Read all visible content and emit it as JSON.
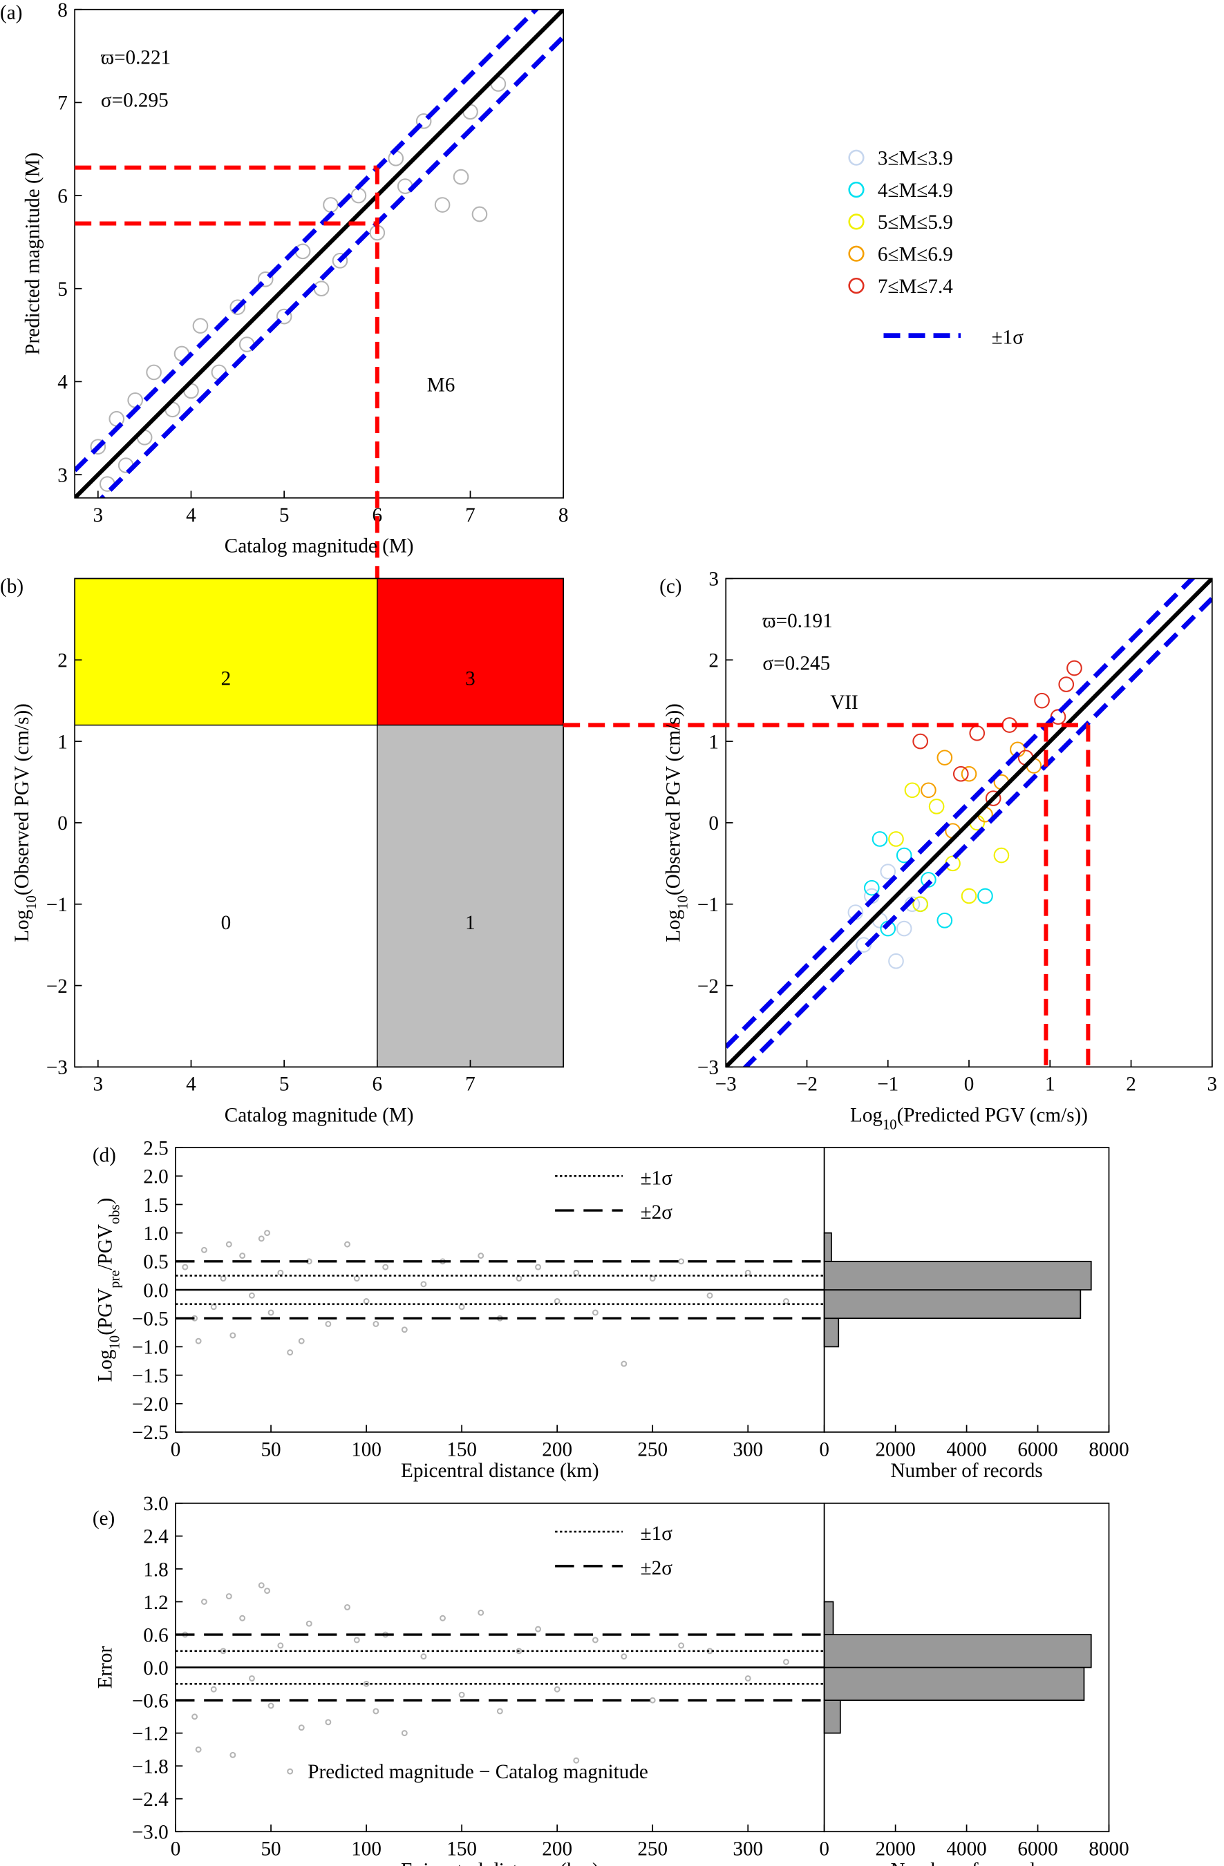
{
  "chart_data": [
    {
      "type": "scatter",
      "panel": "(a)",
      "x_label": [
        "Catalog magnitude (M)"
      ],
      "y_label": [
        "Predicted magnitude (M)"
      ],
      "xlim": [
        2.75,
        8
      ],
      "ylim": [
        2.75,
        8
      ],
      "xticks": [
        3,
        4,
        5,
        6,
        7,
        8
      ],
      "yticks": [
        3,
        4,
        5,
        6,
        7,
        8
      ],
      "color": "#b4b4b4",
      "x": [
        3.0,
        3.1,
        3.2,
        3.3,
        3.4,
        3.5,
        3.6,
        3.8,
        3.9,
        4.0,
        4.1,
        4.3,
        4.5,
        4.6,
        4.8,
        5.0,
        5.2,
        5.4,
        5.5,
        5.6,
        5.8,
        6.0,
        6.2,
        6.3,
        6.5,
        6.7,
        6.9,
        7.0,
        7.1,
        7.3
      ],
      "y": [
        3.3,
        2.9,
        3.6,
        3.1,
        3.8,
        3.4,
        4.1,
        3.7,
        4.3,
        3.9,
        4.6,
        4.1,
        4.8,
        4.4,
        5.1,
        4.7,
        5.4,
        5.0,
        5.9,
        5.3,
        6.0,
        5.6,
        6.4,
        6.1,
        6.8,
        5.9,
        6.2,
        6.9,
        5.8,
        7.2
      ],
      "stats": [
        {
          "symbol": "ϖ=",
          "value": 0.221
        },
        {
          "symbol": "σ=",
          "value": 0.295
        }
      ],
      "band_color": "#0000ee",
      "thresholds": {
        "x": [
          6
        ],
        "y": [
          5.7,
          6.3
        ],
        "color": "#ff0000",
        "label": "M6"
      }
    },
    {
      "type": "quadrant",
      "panel": "(b)",
      "x_label": [
        "Catalog magnitude (M)"
      ],
      "y_label": [
        "Log",
        "10",
        "(Observed PGV (cm/s))"
      ],
      "xlim": [
        2.75,
        8
      ],
      "ylim": [
        -3,
        3
      ],
      "xticks": [
        3,
        4,
        5,
        6,
        7
      ],
      "yticks": [
        {
          "value": -3,
          "label": "−3"
        },
        {
          "value": -2,
          "label": "−2"
        },
        {
          "value": -1,
          "label": "−1"
        },
        0,
        1,
        2
      ],
      "x_split": 6,
      "y_split": 1.2,
      "cells": [
        {
          "label": "0",
          "color": "#ffffff"
        },
        {
          "label": "1",
          "color": "#bebebe"
        },
        {
          "label": "2",
          "color": "#ffff00"
        },
        {
          "label": "3",
          "color": "#ff0000"
        }
      ]
    },
    {
      "type": "scatter",
      "panel": "(c)",
      "x_label": [
        "Log",
        "10",
        "(Predicted PGV (cm/s))"
      ],
      "y_label": [
        "Log",
        "10",
        "(Observed PGV (cm/s))"
      ],
      "xlim": [
        -3,
        3
      ],
      "ylim": [
        -3,
        3
      ],
      "xticks": [
        {
          "value": -3,
          "label": "−3"
        },
        {
          "value": -2,
          "label": "−2"
        },
        {
          "value": -1,
          "label": "−1"
        },
        0,
        1,
        2,
        3
      ],
      "yticks": [
        {
          "value": -3,
          "label": "−3"
        },
        {
          "value": -2,
          "label": "−2"
        },
        {
          "value": -1,
          "label": "−1"
        },
        0,
        1,
        2,
        3
      ],
      "series": [
        {
          "name": "3≤M≤3.9",
          "color": "#c6d6ee",
          "x": [
            -1.3,
            -1.1,
            -0.9,
            -1.2,
            -0.8,
            -1.0,
            -0.7,
            -1.4
          ],
          "y": [
            -1.5,
            -1.2,
            -1.7,
            -0.9,
            -1.3,
            -0.6,
            -1.0,
            -1.1
          ]
        },
        {
          "name": "4≤M≤4.9",
          "color": "#00e0f0",
          "x": [
            -1.2,
            -1.0,
            -0.8,
            -0.6,
            -1.1,
            -0.5,
            -0.3,
            0.2
          ],
          "y": [
            -0.8,
            -1.3,
            -0.4,
            -1.0,
            -0.2,
            -0.7,
            -1.2,
            -0.9
          ]
        },
        {
          "name": "5≤M≤5.9",
          "color": "#f0f000",
          "x": [
            -0.9,
            -0.6,
            -0.4,
            -0.2,
            0.0,
            -0.7,
            0.1,
            0.4
          ],
          "y": [
            -0.2,
            -1.0,
            0.2,
            -0.5,
            -0.9,
            0.4,
            0.0,
            -0.4
          ]
        },
        {
          "name": "6≤M≤6.9",
          "color": "#f5a000",
          "x": [
            -0.5,
            -0.2,
            0.0,
            0.2,
            0.4,
            0.6,
            0.8,
            -0.3
          ],
          "y": [
            0.4,
            -0.1,
            0.6,
            0.1,
            0.5,
            0.9,
            0.7,
            0.8
          ]
        },
        {
          "name": "7≤M≤7.4",
          "color": "#e03020",
          "x": [
            -0.1,
            0.1,
            0.3,
            0.5,
            0.7,
            0.9,
            1.1,
            1.3,
            -0.6,
            1.2
          ],
          "y": [
            0.6,
            1.1,
            0.3,
            1.2,
            0.8,
            1.5,
            1.3,
            1.9,
            1.0,
            1.7
          ]
        }
      ],
      "stats": [
        {
          "symbol": "ϖ=",
          "value": 0.191
        },
        {
          "symbol": "σ=",
          "value": 0.245
        }
      ],
      "band_color": "#0000ee",
      "band_label": "±1σ",
      "thresholds": {
        "x": [
          0.95,
          1.47
        ],
        "y": [
          1.2
        ],
        "color": "#ff0000",
        "label": "VII"
      }
    },
    {
      "type": "residual",
      "panel": "(d)",
      "x_label": [
        "Epicentral distance (km)"
      ],
      "y_label": [
        "Log",
        "10",
        "(PGV",
        "pre",
        "/PGV",
        "obs",
        ")"
      ],
      "xlim": [
        0,
        340
      ],
      "ylim": [
        -2.5,
        2.5
      ],
      "xticks": [
        0,
        50,
        100,
        150,
        200,
        250,
        300
      ],
      "yticks": [
        {
          "value": -2.5,
          "label": "−2.5"
        },
        {
          "value": -2,
          "label": "−2.0"
        },
        {
          "value": -1.5,
          "label": "−1.5"
        },
        {
          "value": -1,
          "label": "−1.0"
        },
        {
          "value": -0.5,
          "label": "−0.5"
        },
        {
          "value": 0,
          "label": "0.0"
        },
        {
          "value": 0.5,
          "label": "0.5"
        },
        {
          "value": 1,
          "label": "1.0"
        },
        {
          "value": 1.5,
          "label": "1.5"
        },
        {
          "value": 2,
          "label": "2.0"
        },
        {
          "value": 2.5,
          "label": "2.5"
        }
      ],
      "color": "#b4b4b4",
      "x": [
        5,
        10,
        15,
        20,
        25,
        30,
        35,
        40,
        45,
        50,
        55,
        60,
        70,
        80,
        90,
        100,
        110,
        120,
        130,
        140,
        150,
        160,
        170,
        180,
        190,
        200,
        210,
        220,
        235,
        250,
        265,
        280,
        300,
        320,
        12,
        28,
        48,
        66,
        95,
        105
      ],
      "y": [
        0.4,
        -0.5,
        0.7,
        -0.3,
        0.2,
        -0.8,
        0.6,
        -0.1,
        0.9,
        -0.4,
        0.3,
        -1.1,
        0.5,
        -0.6,
        0.8,
        -0.2,
        0.4,
        -0.7,
        0.1,
        0.5,
        -0.3,
        0.6,
        -0.5,
        0.2,
        0.4,
        -0.2,
        0.3,
        -0.4,
        -1.3,
        0.2,
        0.5,
        -0.1,
        0.3,
        -0.2,
        -0.9,
        0.8,
        1.0,
        -0.9,
        0.2,
        -0.6
      ],
      "lines": [
        {
          "value": 0.25,
          "style": "dotted",
          "label": "±1σ"
        },
        {
          "value": 0.5,
          "style": "dashed",
          "label": "±2σ"
        }
      ],
      "hist": {
        "bins": [
          -1,
          -0.5,
          0,
          0.5,
          1
        ],
        "counts": [
          400,
          7200,
          7500,
          200
        ],
        "color": "#999999",
        "xlim": [
          0,
          8000
        ],
        "xticks": [
          0,
          2000,
          4000,
          6000,
          8000
        ],
        "x_label": [
          "Number of records"
        ]
      }
    },
    {
      "type": "residual",
      "panel": "(e)",
      "x_label": [
        "Epicentral distance (km)"
      ],
      "y_label": [
        "Error"
      ],
      "xlim": [
        0,
        340
      ],
      "ylim": [
        -3,
        3
      ],
      "xticks": [
        0,
        50,
        100,
        150,
        200,
        250,
        300
      ],
      "yticks": [
        {
          "value": -3,
          "label": "−3.0"
        },
        {
          "value": -2.4,
          "label": "−2.4"
        },
        {
          "value": -1.8,
          "label": "−1.8"
        },
        {
          "value": -1.2,
          "label": "−1.2"
        },
        {
          "value": -0.6,
          "label": "−0.6"
        },
        {
          "value": 0,
          "label": "0.0"
        },
        {
          "value": 0.6,
          "label": "0.6"
        },
        {
          "value": 1.2,
          "label": "1.2"
        },
        {
          "value": 1.8,
          "label": "1.8"
        },
        {
          "value": 2.4,
          "label": "2.4"
        },
        {
          "value": 3,
          "label": "3.0"
        }
      ],
      "color": "#b4b4b4",
      "x": [
        5,
        10,
        15,
        20,
        25,
        30,
        35,
        40,
        45,
        50,
        55,
        60,
        70,
        80,
        90,
        100,
        110,
        120,
        130,
        140,
        150,
        160,
        170,
        180,
        190,
        200,
        210,
        220,
        235,
        250,
        265,
        280,
        300,
        320,
        12,
        28,
        48,
        66,
        95,
        105
      ],
      "y": [
        0.6,
        -0.9,
        1.2,
        -0.4,
        0.3,
        -1.6,
        0.9,
        -0.2,
        1.5,
        -0.7,
        0.4,
        -1.9,
        0.8,
        -1.0,
        1.1,
        -0.3,
        0.6,
        -1.2,
        0.2,
        0.9,
        -0.5,
        1.0,
        -0.8,
        0.3,
        0.7,
        -0.4,
        -1.7,
        0.5,
        0.2,
        -0.6,
        0.4,
        0.3,
        -0.2,
        0.1,
        -1.5,
        1.3,
        1.4,
        -1.1,
        0.5,
        -0.8
      ],
      "lines": [
        {
          "value": 0.3,
          "style": "dotted",
          "label": "±1σ"
        },
        {
          "value": 0.6,
          "style": "dashed",
          "label": "±2σ"
        }
      ],
      "annotation": "Predicted magnitude − Catalog magnitude",
      "hist": {
        "bins": [
          -1.2,
          -0.6,
          0,
          0.6,
          1.2
        ],
        "counts": [
          450,
          7300,
          7500,
          250
        ],
        "color": "#999999",
        "xlim": [
          0,
          8000
        ],
        "xticks": [
          0,
          2000,
          4000,
          6000,
          8000
        ],
        "x_label": [
          "Number of records"
        ]
      }
    }
  ]
}
